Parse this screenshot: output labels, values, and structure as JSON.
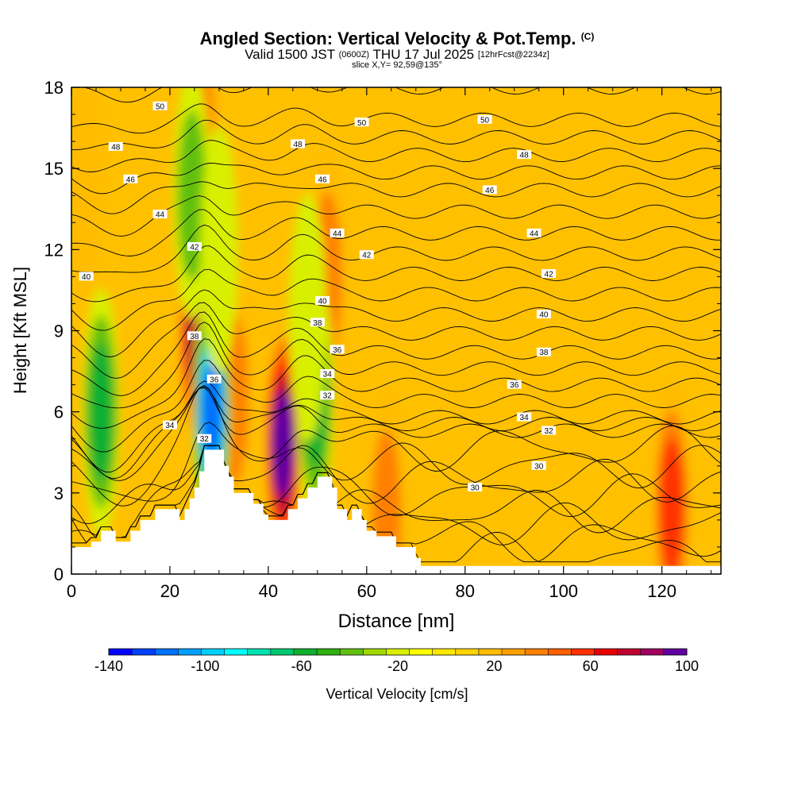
{
  "header": {
    "title": "Angled Section: Vertical Velocity & Pot.Temp.",
    "title_units": "(C)",
    "valid_prefix": "Valid 1500 JST",
    "valid_utc": "(0600Z)",
    "valid_date": "THU 17 Jul 2025",
    "forecast": "[12hrFcst@2234z]",
    "slice": "slice X,Y= 92,59@135°"
  },
  "chart_data": {
    "type": "heatmap",
    "xlabel": "Distance [nm]",
    "ylabel": "Height [Kft MSL]",
    "xlim": [
      0,
      132
    ],
    "ylim": [
      0,
      18
    ],
    "x_ticks": [
      0,
      20,
      40,
      60,
      80,
      100,
      120
    ],
    "y_ticks": [
      0,
      3,
      6,
      9,
      12,
      15,
      18
    ],
    "colorbar": {
      "label": "Vertical Velocity [cm/s]",
      "ticks": [
        -140,
        -100,
        -60,
        -20,
        20,
        60,
        100
      ],
      "min": -140,
      "max": 100,
      "step": 10,
      "colors": [
        "#0000ff",
        "#0040ff",
        "#0070ff",
        "#00a0ff",
        "#00d0ff",
        "#00ffff",
        "#00e0b0",
        "#00c870",
        "#10b030",
        "#30b010",
        "#60c010",
        "#a0d800",
        "#d8f000",
        "#ffff00",
        "#ffe800",
        "#ffd400",
        "#ffbb00",
        "#ffa000",
        "#ff8000",
        "#ff6000",
        "#ff3000",
        "#e80000",
        "#c00030",
        "#a00060",
        "#6000a0"
      ]
    },
    "terrain": [
      [
        0,
        1.0
      ],
      [
        4,
        1.0
      ],
      [
        4,
        1.2
      ],
      [
        6,
        1.2
      ],
      [
        6,
        1.6
      ],
      [
        9,
        1.6
      ],
      [
        9,
        1.2
      ],
      [
        12,
        1.2
      ],
      [
        12,
        1.6
      ],
      [
        14,
        1.6
      ],
      [
        14,
        2.0
      ],
      [
        17,
        2.0
      ],
      [
        17,
        2.4
      ],
      [
        22,
        2.4
      ],
      [
        22,
        2.0
      ],
      [
        23,
        2.0
      ],
      [
        23,
        2.4
      ],
      [
        24,
        2.4
      ],
      [
        24,
        2.8
      ],
      [
        25,
        2.8
      ],
      [
        25,
        3.2
      ],
      [
        26,
        3.2
      ],
      [
        26,
        3.8
      ],
      [
        27,
        3.8
      ],
      [
        27,
        4.6
      ],
      [
        31,
        4.6
      ],
      [
        31,
        4.0
      ],
      [
        32,
        4.0
      ],
      [
        32,
        3.6
      ],
      [
        33,
        3.6
      ],
      [
        33,
        3.0
      ],
      [
        37,
        3.0
      ],
      [
        37,
        2.6
      ],
      [
        39,
        2.6
      ],
      [
        39,
        2.2
      ],
      [
        40,
        2.2
      ],
      [
        40,
        2.0
      ],
      [
        44,
        2.0
      ],
      [
        44,
        2.4
      ],
      [
        46,
        2.4
      ],
      [
        46,
        2.8
      ],
      [
        48,
        2.8
      ],
      [
        48,
        3.2
      ],
      [
        50,
        3.2
      ],
      [
        50,
        3.6
      ],
      [
        53,
        3.6
      ],
      [
        53,
        3.2
      ],
      [
        54,
        3.2
      ],
      [
        54,
        2.4
      ],
      [
        56,
        2.4
      ],
      [
        56,
        2.0
      ],
      [
        57,
        2.0
      ],
      [
        57,
        2.4
      ],
      [
        59,
        2.4
      ],
      [
        59,
        2.0
      ],
      [
        60,
        2.0
      ],
      [
        60,
        1.6
      ],
      [
        62,
        1.6
      ],
      [
        62,
        1.4
      ],
      [
        66,
        1.4
      ],
      [
        66,
        1.0
      ],
      [
        70,
        1.0
      ],
      [
        70,
        0.6
      ],
      [
        71,
        0.6
      ],
      [
        71,
        0.3
      ],
      [
        132,
        0.3
      ]
    ],
    "theta_contours": [
      {
        "value": 30,
        "label_at": [
          [
            82,
            3.2
          ],
          [
            95,
            4.0
          ]
        ]
      },
      {
        "value": 32,
        "label_at": [
          [
            27,
            5.0
          ],
          [
            52,
            6.6
          ],
          [
            97,
            5.3
          ]
        ]
      },
      {
        "value": 34,
        "label_at": [
          [
            20,
            5.5
          ],
          [
            52,
            7.4
          ],
          [
            92,
            5.8
          ]
        ]
      },
      {
        "value": 36,
        "label_at": [
          [
            29,
            7.2
          ],
          [
            54,
            8.3
          ],
          [
            90,
            7.0
          ]
        ]
      },
      {
        "value": 38,
        "label_at": [
          [
            25,
            8.8
          ],
          [
            50,
            9.3
          ],
          [
            96,
            8.2
          ]
        ]
      },
      {
        "value": 40,
        "label_at": [
          [
            3,
            11.0
          ],
          [
            51,
            10.1
          ],
          [
            96,
            9.6
          ]
        ]
      },
      {
        "value": 42,
        "label_at": [
          [
            25,
            12.1
          ],
          [
            60,
            11.8
          ],
          [
            97,
            11.1
          ]
        ]
      },
      {
        "value": 44,
        "label_at": [
          [
            18,
            13.3
          ],
          [
            54,
            12.6
          ],
          [
            94,
            12.6
          ]
        ]
      },
      {
        "value": 46,
        "label_at": [
          [
            12,
            14.6
          ],
          [
            51,
            14.6
          ],
          [
            85,
            14.2
          ]
        ]
      },
      {
        "value": 48,
        "label_at": [
          [
            9,
            15.8
          ],
          [
            46,
            15.9
          ],
          [
            92,
            15.5
          ]
        ]
      },
      {
        "value": 50,
        "label_at": [
          [
            18,
            17.3
          ],
          [
            59,
            16.7
          ],
          [
            84,
            16.8
          ]
        ]
      }
    ],
    "updrafts": [
      {
        "x": 25.5,
        "y": 9.0,
        "peak": 90
      },
      {
        "x": 43,
        "y": 4.8,
        "peak": 100
      },
      {
        "x": 26,
        "y": 16.5,
        "peak": 50
      },
      {
        "x": 52,
        "y": 11,
        "peak": 45
      },
      {
        "x": 122,
        "y": 2.5,
        "peak": 60
      },
      {
        "x": 64,
        "y": 2.2,
        "peak": 50
      },
      {
        "x": 2.5,
        "y": 15,
        "peak": 35
      },
      {
        "x": 33,
        "y": 6.5,
        "peak": 40
      }
    ],
    "downdrafts": [
      {
        "x": 28.5,
        "y": 6.0,
        "peak": -120
      },
      {
        "x": 6,
        "y": 6.0,
        "peak": -60
      },
      {
        "x": 24.5,
        "y": 14.0,
        "peak": -50
      },
      {
        "x": 49.5,
        "y": 6.5,
        "peak": -60
      },
      {
        "x": 30,
        "y": 12,
        "peak": -30
      },
      {
        "x": 48,
        "y": 9.5,
        "peak": -25
      }
    ]
  }
}
